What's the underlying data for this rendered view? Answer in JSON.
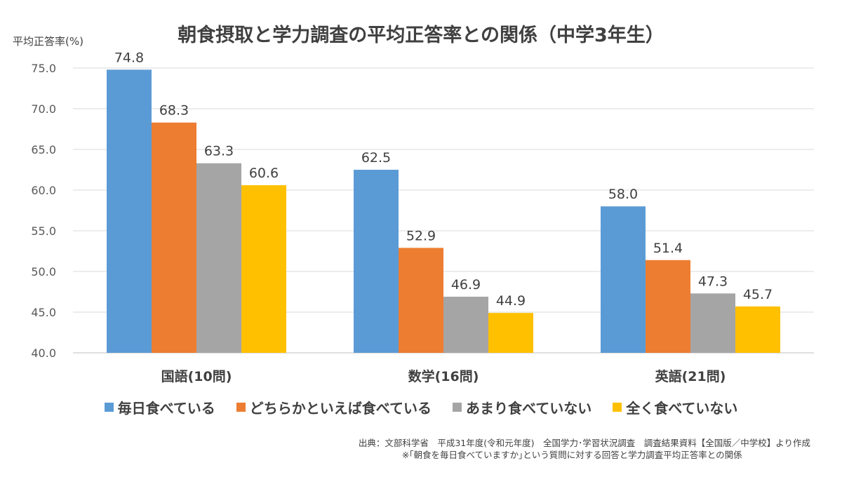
{
  "chart_data": {
    "type": "bar",
    "title": "朝食摂取と学力調査の平均正答率との関係（中学3年生）",
    "xlabel": "",
    "ylabel": "平均正答率(%)",
    "ylim": [
      40,
      75
    ],
    "yticks": [
      "40.0",
      "45.0",
      "50.0",
      "55.0",
      "60.0",
      "65.0",
      "70.0",
      "75.0"
    ],
    "grid": true,
    "legend_position": "bottom",
    "categories": [
      "国語(10問)",
      "数学(16問)",
      "英語(21問)"
    ],
    "series": [
      {
        "name": "毎日食べている",
        "color": "#5B9BD5",
        "values": [
          74.8,
          62.5,
          58.0
        ],
        "labels": [
          "74.8",
          "62.5",
          "58.0"
        ]
      },
      {
        "name": "どちらかといえば食べている",
        "color": "#ED7D31",
        "values": [
          68.3,
          52.9,
          51.4
        ],
        "labels": [
          "68.3",
          "52.9",
          "51.4"
        ]
      },
      {
        "name": "あまり食べていない",
        "color": "#A5A5A5",
        "values": [
          63.3,
          46.9,
          47.3
        ],
        "labels": [
          "63.3",
          "46.9",
          "47.3"
        ]
      },
      {
        "name": "全く食べていない",
        "color": "#FFC000",
        "values": [
          60.6,
          44.9,
          45.7
        ],
        "labels": [
          "60.6",
          "44.9",
          "45.7"
        ]
      }
    ]
  },
  "source": {
    "line1": "出典：文部科学省　平成31年度(令和元年度)　全国学力･学習状況調査　調査結果資料【全国版／中学校】より作成",
    "line2": "※｢朝食を毎日食べていますか｣という質問に対する回答と学力調査平均正答率との関係"
  }
}
